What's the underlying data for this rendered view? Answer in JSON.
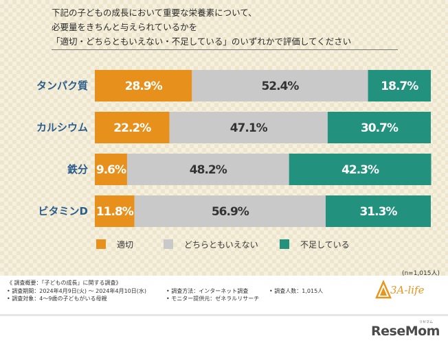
{
  "question": {
    "line1": "下記の子どもの成長において重要な栄養素について、",
    "line2": "必要量をきちんと与えられているかを",
    "line3": "「適切・どちらともいえない・不足している」のいずれかで評価してください"
  },
  "chart_data": {
    "type": "bar",
    "orientation": "horizontal-stacked-100",
    "categories": [
      "タンパク質",
      "カルシウム",
      "鉄分",
      "ビタミンD"
    ],
    "series": [
      {
        "name": "適切",
        "color": "#e8901c",
        "values": [
          28.9,
          22.2,
          9.6,
          11.8
        ],
        "labels": [
          "28.9%",
          "22.2%",
          "9.6%",
          "11.8%"
        ],
        "label_color": "#ffffff"
      },
      {
        "name": "どちらともいえない",
        "color": "#c9c9c9",
        "values": [
          52.4,
          47.1,
          48.2,
          56.9
        ],
        "labels": [
          "52.4%",
          "47.1%",
          "48.2%",
          "56.9%"
        ],
        "label_color": "#333333"
      },
      {
        "name": "不足している",
        "color": "#22917e",
        "values": [
          18.7,
          30.7,
          42.3,
          31.3
        ],
        "labels": [
          "18.7%",
          "30.7%",
          "42.3%",
          "31.3%"
        ],
        "label_color": "#ffffff"
      }
    ],
    "xlim": [
      0,
      100
    ],
    "legend_position": "bottom"
  },
  "sample_note": "(n=1,015人)",
  "survey": {
    "title": "《 調査概要：「子どもの成長」に関する調査》",
    "period": "• 調査期間：2024年4月9日(火) ～ 2024年4月10日(水)",
    "method": "• 調査方法：インターネット調査",
    "count": "• 調査人数：1,015人",
    "target": "• 調査対象：4～9歳の子どもがいる母親",
    "provider": "• モニター提供元：ゼネラルリサーチ"
  },
  "brand": "3A-life",
  "logo": "ReseMom",
  "logo_ruby": "リセマム"
}
